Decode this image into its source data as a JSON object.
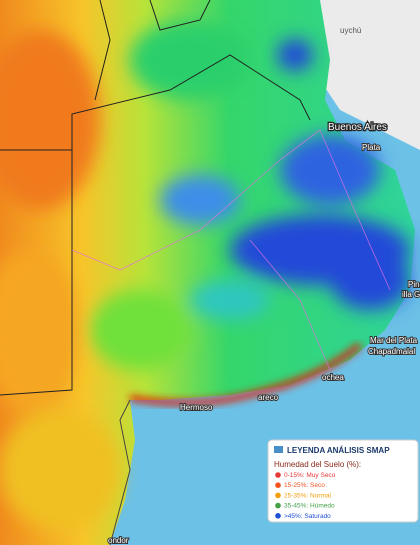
{
  "map": {
    "places": [
      "Buenos Aires",
      "Plata",
      "Mar del Plata",
      "Chapadmalal",
      "ochea",
      "Hermoso",
      "areco",
      "Pina",
      "illa Ge",
      "uychú",
      "ondor"
    ]
  },
  "legend": {
    "title": "LEYENDA ANÁLISIS SMAP",
    "subtitle": "Humedad del Suelo (%):",
    "items": [
      {
        "label": "0-15%: Muy Seco",
        "color": "#e53935"
      },
      {
        "label": "15-25%: Seco",
        "color": "#f4511e"
      },
      {
        "label": "25-35%: Normal",
        "color": "#f59e0b"
      },
      {
        "label": "35-45%: Húmedo",
        "color": "#43a047"
      },
      {
        "label": ">45%: Saturado",
        "color": "#1e4fd8"
      }
    ]
  }
}
